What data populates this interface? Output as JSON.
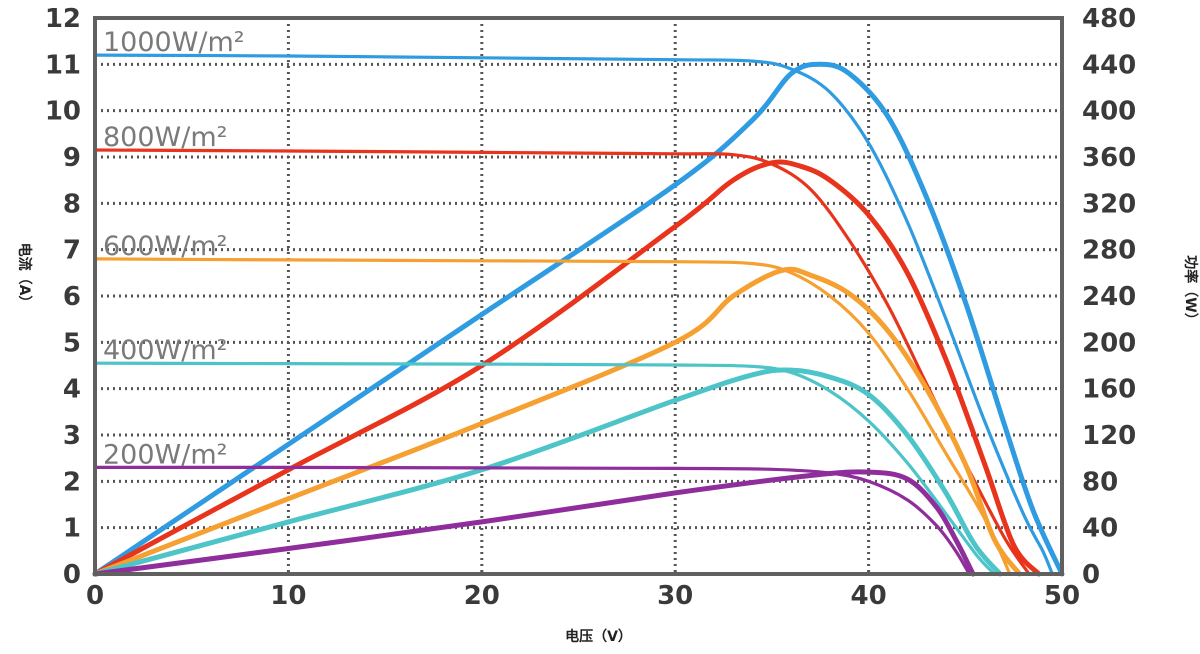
{
  "chart_data": {
    "type": "line",
    "title": "",
    "xlabel": "电压（V）",
    "ylabel_left": "电流（A）",
    "ylabel_right": "功率（W）",
    "xlim": [
      0,
      50
    ],
    "ylim_left": [
      0,
      12
    ],
    "ylim_right": [
      0,
      480
    ],
    "x_ticks": [
      "0",
      "10",
      "20",
      "30",
      "40",
      "50"
    ],
    "y_left_ticks": [
      "0",
      "1",
      "2",
      "3",
      "4",
      "5",
      "6",
      "7",
      "8",
      "9",
      "10",
      "11",
      "12"
    ],
    "y_right_ticks": [
      "0",
      "40",
      "80",
      "120",
      "160",
      "200",
      "240",
      "280",
      "320",
      "360",
      "400",
      "440",
      "480"
    ],
    "grid": true,
    "series": [
      {
        "name": "1000W/m²",
        "color": "#2f9be0",
        "iv": [
          [
            0,
            11.2
          ],
          [
            10,
            11.18
          ],
          [
            20,
            11.14
          ],
          [
            30,
            11.1
          ],
          [
            34,
            11.07
          ],
          [
            36,
            10.9
          ],
          [
            38,
            10.4
          ],
          [
            40,
            9.3
          ],
          [
            42,
            7.6
          ],
          [
            44,
            5.5
          ],
          [
            46,
            3.3
          ],
          [
            48,
            1.3
          ],
          [
            49,
            0.5
          ],
          [
            49.5,
            0
          ]
        ],
        "pv": [
          [
            0,
            0
          ],
          [
            10,
            112
          ],
          [
            20,
            224
          ],
          [
            30,
            336
          ],
          [
            34,
            392
          ],
          [
            36,
            432
          ],
          [
            37.5,
            440
          ],
          [
            39,
            432
          ],
          [
            41,
            395
          ],
          [
            43,
            325
          ],
          [
            45,
            235
          ],
          [
            47,
            130
          ],
          [
            48.5,
            55
          ],
          [
            50,
            0
          ]
        ]
      },
      {
        "name": "800W/m²",
        "color": "#e8341c",
        "iv": [
          [
            0,
            9.15
          ],
          [
            10,
            9.13
          ],
          [
            20,
            9.1
          ],
          [
            30,
            9.07
          ],
          [
            33,
            9.05
          ],
          [
            35,
            8.85
          ],
          [
            37,
            8.3
          ],
          [
            39,
            7.2
          ],
          [
            41,
            5.8
          ],
          [
            43,
            4.1
          ],
          [
            45,
            2.4
          ],
          [
            47,
            0.8
          ],
          [
            48.3,
            0
          ]
        ],
        "pv": [
          [
            0,
            0
          ],
          [
            10,
            90
          ],
          [
            20,
            180
          ],
          [
            30,
            300
          ],
          [
            33,
            340
          ],
          [
            35,
            355
          ],
          [
            36.5,
            352
          ],
          [
            38,
            340
          ],
          [
            40,
            310
          ],
          [
            42,
            260
          ],
          [
            44,
            185
          ],
          [
            46,
            95
          ],
          [
            47.5,
            25
          ],
          [
            48.8,
            0
          ]
        ]
      },
      {
        "name": "600W/m²",
        "color": "#f5a030",
        "iv": [
          [
            0,
            6.8
          ],
          [
            10,
            6.78
          ],
          [
            20,
            6.76
          ],
          [
            30,
            6.74
          ],
          [
            34,
            6.7
          ],
          [
            36,
            6.5
          ],
          [
            38,
            6.0
          ],
          [
            40,
            5.2
          ],
          [
            42,
            4.0
          ],
          [
            44,
            2.6
          ],
          [
            46,
            1.2
          ],
          [
            47.3,
            0
          ]
        ],
        "pv": [
          [
            0,
            0
          ],
          [
            10,
            65
          ],
          [
            20,
            130
          ],
          [
            30,
            200
          ],
          [
            33,
            240
          ],
          [
            35.5,
            262
          ],
          [
            37,
            258
          ],
          [
            39,
            242
          ],
          [
            41,
            210
          ],
          [
            43,
            160
          ],
          [
            45,
            95
          ],
          [
            46.5,
            30
          ],
          [
            47.8,
            0
          ]
        ]
      },
      {
        "name": "400W/m²",
        "color": "#4dc4c8",
        "iv": [
          [
            0,
            4.55
          ],
          [
            10,
            4.54
          ],
          [
            20,
            4.53
          ],
          [
            30,
            4.51
          ],
          [
            34,
            4.48
          ],
          [
            36,
            4.35
          ],
          [
            38,
            3.95
          ],
          [
            40,
            3.3
          ],
          [
            42,
            2.4
          ],
          [
            44,
            1.3
          ],
          [
            45.6,
            0.4
          ],
          [
            46.5,
            0
          ]
        ],
        "pv": [
          [
            0,
            0
          ],
          [
            10,
            45
          ],
          [
            20,
            90
          ],
          [
            30,
            150
          ],
          [
            34,
            172
          ],
          [
            36,
            176
          ],
          [
            38,
            170
          ],
          [
            40,
            155
          ],
          [
            42,
            120
          ],
          [
            44,
            70
          ],
          [
            45.5,
            25
          ],
          [
            46.8,
            0
          ]
        ]
      },
      {
        "name": "200W/m²",
        "color": "#8e2d9b",
        "iv": [
          [
            0,
            2.3
          ],
          [
            10,
            2.3
          ],
          [
            20,
            2.29
          ],
          [
            30,
            2.28
          ],
          [
            35,
            2.26
          ],
          [
            38,
            2.18
          ],
          [
            40,
            2.0
          ],
          [
            42,
            1.6
          ],
          [
            43.5,
            1.05
          ],
          [
            44.5,
            0.5
          ],
          [
            45.2,
            0
          ]
        ],
        "pv": [
          [
            0,
            0
          ],
          [
            10,
            22
          ],
          [
            20,
            45
          ],
          [
            30,
            70
          ],
          [
            37,
            85
          ],
          [
            40,
            88
          ],
          [
            42,
            82
          ],
          [
            43.5,
            58
          ],
          [
            44.5,
            30
          ],
          [
            45.4,
            0
          ]
        ]
      }
    ]
  }
}
